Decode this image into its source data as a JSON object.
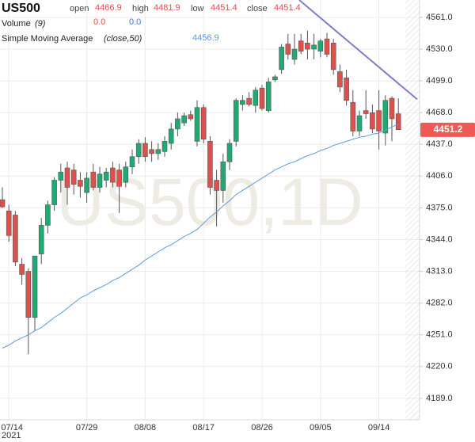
{
  "chart_data": {
    "type": "candlestick",
    "title": "US500",
    "watermark": "US500,1D",
    "header": {
      "open_label": "open",
      "open": 4466.9,
      "high_label": "high",
      "high": 4481.9,
      "low_label": "low",
      "low": 4451.4,
      "close_label": "close",
      "close": 4451.4,
      "value_color": "#e0504a"
    },
    "volume": {
      "label": "Volume",
      "params": "(9)",
      "values": [
        "0.0",
        "0.0"
      ],
      "colors": [
        "#e0504a",
        "#3b7fd4"
      ]
    },
    "sma": {
      "label": "Simple Moving Average",
      "params": "(close,50)",
      "value": 4456.9,
      "color": "#5b9be0",
      "values": [
        4238,
        4241,
        4245,
        4248,
        4251,
        4255,
        4258,
        4263,
        4268,
        4272,
        4277,
        4282,
        4287,
        4290,
        4294,
        4297,
        4300,
        4304,
        4307,
        4311,
        4315,
        4319,
        4324,
        4328,
        4332,
        4336,
        4339,
        4343,
        4347,
        4350,
        4354,
        4360,
        4366,
        4371,
        4377,
        4382,
        4388,
        4392,
        4396,
        4400,
        4404,
        4408,
        4412,
        4415,
        4418,
        4420,
        4423,
        4426,
        4428,
        4431,
        4433,
        4436,
        4438,
        4440,
        4442,
        4444,
        4445,
        4447,
        4448,
        4451,
        4454,
        4456.9
      ]
    },
    "categories": [
      null,
      "07/14",
      null,
      null,
      null,
      null,
      null,
      null,
      null,
      null,
      null,
      null,
      null,
      "07/29",
      null,
      null,
      null,
      null,
      null,
      null,
      null,
      null,
      "08/08",
      null,
      null,
      null,
      null,
      null,
      null,
      null,
      null,
      "08/17",
      null,
      null,
      null,
      null,
      null,
      null,
      null,
      null,
      "08/26",
      null,
      null,
      null,
      null,
      null,
      null,
      null,
      null,
      "09/05",
      null,
      null,
      null,
      null,
      null,
      null,
      null,
      null,
      "09/14",
      null,
      null,
      null
    ],
    "year_label": "2021",
    "candles": {
      "up_color": "#22a873",
      "down_color": "#e0504a",
      "open": [
        4383,
        4372,
        4368,
        4320,
        4313,
        4268,
        4330,
        4358,
        4378,
        4402,
        4414,
        4412,
        4402,
        4390,
        4410,
        4395,
        4402,
        4414,
        4412,
        4400,
        4415,
        4425,
        4438,
        4432,
        4428,
        4430,
        4438,
        4452,
        4458,
        4466,
        4440,
        4473,
        4440,
        4402,
        4392,
        4420,
        4440,
        4476,
        4482,
        4475,
        4492,
        4470,
        4500,
        4510,
        4535,
        4520,
        4538,
        4536,
        4530,
        4528,
        4540,
        4536,
        4508,
        4502,
        4478,
        4450,
        4470,
        4468,
        4470,
        4448,
        4482,
        4466.9
      ],
      "high": [
        4395,
        4378,
        4372,
        4326,
        4316,
        4320,
        4365,
        4382,
        4405,
        4418,
        4420,
        4418,
        4410,
        4410,
        4418,
        4415,
        4414,
        4420,
        4418,
        4420,
        4432,
        4442,
        4444,
        4440,
        4438,
        4445,
        4458,
        4468,
        4468,
        4470,
        4480,
        4476,
        4445,
        4412,
        4428,
        4442,
        4482,
        4485,
        4488,
        4493,
        4495,
        4502,
        4505,
        4535,
        4545,
        4545,
        4545,
        4548,
        4545,
        4540,
        4546,
        4540,
        4515,
        4510,
        4490,
        4470,
        4490,
        4476,
        4490,
        4485,
        4484,
        4481.9
      ],
      "low": [
        4375,
        4342,
        4318,
        4300,
        4232,
        4255,
        4320,
        4350,
        4372,
        4390,
        4378,
        4388,
        4385,
        4380,
        4392,
        4390,
        4395,
        4395,
        4370,
        4395,
        4408,
        4418,
        4420,
        4420,
        4422,
        4425,
        4432,
        4445,
        4455,
        4460,
        4435,
        4438,
        4388,
        4357,
        4380,
        4412,
        4435,
        4470,
        4474,
        4468,
        4470,
        4468,
        4498,
        4506,
        4520,
        4515,
        4525,
        4520,
        4520,
        4522,
        4522,
        4505,
        4488,
        4475,
        4445,
        4445,
        4462,
        4448,
        4432,
        4436,
        4440,
        4451.4
      ],
      "close": [
        4376,
        4348,
        4322,
        4310,
        4268,
        4328,
        4358,
        4378,
        4402,
        4410,
        4395,
        4398,
        4396,
        4404,
        4395,
        4408,
        4410,
        4400,
        4396,
        4415,
        4425,
        4438,
        4425,
        4428,
        4432,
        4440,
        4452,
        4462,
        4465,
        4462,
        4473,
        4442,
        4395,
        4392,
        4420,
        4438,
        4480,
        4480,
        4476,
        4490,
        4472,
        4498,
        4503,
        4532,
        4525,
        4530,
        4528,
        4530,
        4534,
        4538,
        4525,
        4510,
        4493,
        4480,
        4450,
        4465,
        4467,
        4452,
        4450,
        4480,
        4462,
        4451.4
      ]
    },
    "trendline": {
      "x": [
        45.73,
        63.9
      ],
      "values": [
        4578,
        4481
      ],
      "color": "#7d7ec6"
    },
    "last_price": 4451.2,
    "last_price_color": "#ef5a55",
    "ylim": [
      4168,
      4578
    ],
    "yticks": [
      {
        "value": 4189,
        "label": "4189.0"
      },
      {
        "value": 4220,
        "label": "4220.0"
      },
      {
        "value": 4251,
        "label": "4251.0"
      },
      {
        "value": 4282,
        "label": "4282.0"
      },
      {
        "value": 4313,
        "label": "4313.0"
      },
      {
        "value": 4344,
        "label": "4344.0"
      },
      {
        "value": 4375,
        "label": "4375.0"
      },
      {
        "value": 4406,
        "label": "4406.0"
      },
      {
        "value": 4437,
        "label": "4437.0"
      },
      {
        "value": 4468,
        "label": "4468.0"
      },
      {
        "value": 4499,
        "label": "4499.0"
      },
      {
        "value": 4530,
        "label": "4530.0"
      },
      {
        "value": 4561,
        "label": "4561.0"
      }
    ],
    "grid": true
  }
}
